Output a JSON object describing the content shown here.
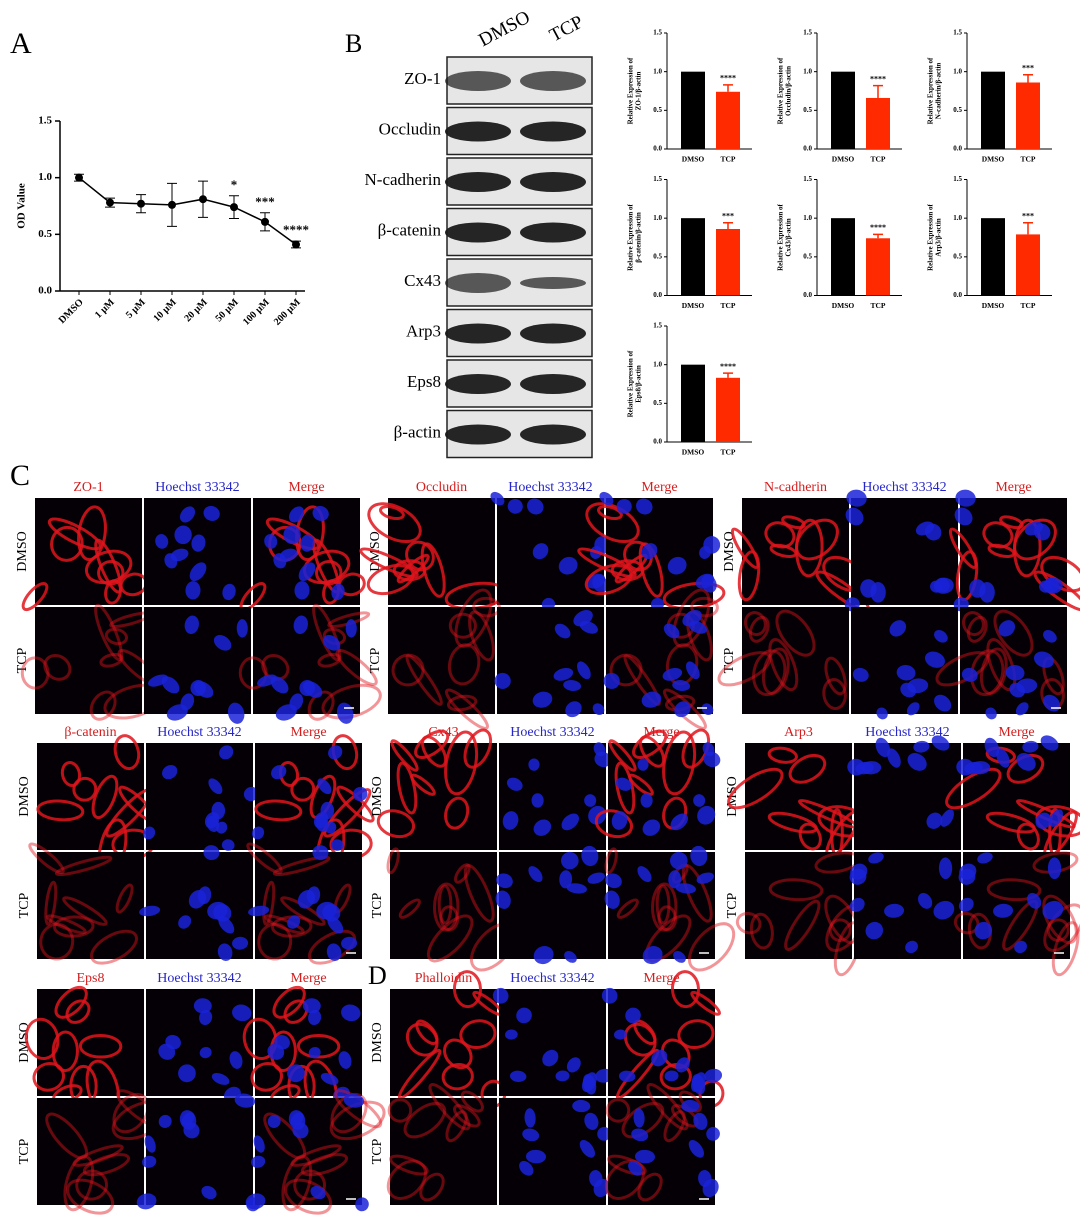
{
  "panels": [
    "A",
    "B",
    "C",
    "D"
  ],
  "chart_data": [
    {
      "type": "line",
      "ylabel": "OD Value",
      "categories": [
        "DMSO",
        "1 μM",
        "5 μM",
        "10 μM",
        "20 μM",
        "50 μM",
        "100 μM",
        "200 μM"
      ],
      "values": [
        1.0,
        0.78,
        0.77,
        0.76,
        0.81,
        0.74,
        0.61,
        0.41
      ],
      "errors": [
        0.03,
        0.04,
        0.08,
        0.19,
        0.16,
        0.1,
        0.08,
        0.03
      ],
      "annotations": [
        null,
        null,
        null,
        null,
        null,
        "*",
        "***",
        "****"
      ],
      "color": "#000000",
      "ylim": [
        0,
        1.5
      ],
      "yticks": [
        {
          "value": 0,
          "label": "0.0"
        },
        {
          "value": 0.5,
          "label": "0.5"
        },
        {
          "value": 1,
          "label": "1.0"
        },
        {
          "value": 1.5,
          "label": "1.5"
        }
      ]
    },
    {
      "type": "bar",
      "ylabel": [
        "Relative Expression of",
        "ZO-1/β-actin"
      ],
      "categories": [
        "DMSO",
        "TCP"
      ],
      "values": [
        1.0,
        0.74
      ],
      "errors": [
        null,
        0.09
      ],
      "annotations": [
        null,
        "****"
      ],
      "colors": [
        "#000000",
        "#ff2a00"
      ],
      "ylim": [
        0,
        1.5
      ],
      "yticks": [
        {
          "value": 0,
          "label": "0.0"
        },
        {
          "value": 0.5,
          "label": "0.5"
        },
        {
          "value": 1,
          "label": "1.0"
        },
        {
          "value": 1.5,
          "label": "1.5"
        }
      ]
    },
    {
      "type": "bar",
      "ylabel": [
        "Relative Expression of",
        "Occludin/β-actin"
      ],
      "categories": [
        "DMSO",
        "TCP"
      ],
      "values": [
        1.0,
        0.66
      ],
      "errors": [
        null,
        0.16
      ],
      "annotations": [
        null,
        "****"
      ],
      "colors": [
        "#000000",
        "#ff2a00"
      ],
      "ylim": [
        0,
        1.5
      ],
      "yticks": [
        {
          "value": 0,
          "label": "0.0"
        },
        {
          "value": 0.5,
          "label": "0.5"
        },
        {
          "value": 1,
          "label": "1.0"
        },
        {
          "value": 1.5,
          "label": "1.5"
        }
      ]
    },
    {
      "type": "bar",
      "ylabel": [
        "Relative Expression of",
        "N-cadherin/β-actin"
      ],
      "categories": [
        "DMSO",
        "TCP"
      ],
      "values": [
        1.0,
        0.86
      ],
      "errors": [
        null,
        0.1
      ],
      "annotations": [
        null,
        "***"
      ],
      "colors": [
        "#000000",
        "#ff2a00"
      ],
      "ylim": [
        0,
        1.5
      ],
      "yticks": [
        {
          "value": 0,
          "label": "0.0"
        },
        {
          "value": 0.5,
          "label": "0.5"
        },
        {
          "value": 1,
          "label": "1.0"
        },
        {
          "value": 1.5,
          "label": "1.5"
        }
      ]
    },
    {
      "type": "bar",
      "ylabel": [
        "Relative Expression of",
        "β-catenin/β-actin"
      ],
      "categories": [
        "DMSO",
        "TCP"
      ],
      "values": [
        1.0,
        0.86
      ],
      "errors": [
        null,
        0.08
      ],
      "annotations": [
        null,
        "***"
      ],
      "colors": [
        "#000000",
        "#ff2a00"
      ],
      "ylim": [
        0,
        1.5
      ],
      "yticks": [
        {
          "value": 0,
          "label": "0.0"
        },
        {
          "value": 0.5,
          "label": "0.5"
        },
        {
          "value": 1,
          "label": "1.0"
        },
        {
          "value": 1.5,
          "label": "1.5"
        }
      ]
    },
    {
      "type": "bar",
      "ylabel": [
        "Relative Expression of",
        "Cx43/β-actin"
      ],
      "categories": [
        "DMSO",
        "TCP"
      ],
      "values": [
        1.0,
        0.74
      ],
      "errors": [
        null,
        0.05
      ],
      "annotations": [
        null,
        "****"
      ],
      "colors": [
        "#000000",
        "#ff2a00"
      ],
      "ylim": [
        0,
        1.5
      ],
      "yticks": [
        {
          "value": 0,
          "label": "0.0"
        },
        {
          "value": 0.5,
          "label": "0.5"
        },
        {
          "value": 1,
          "label": "1.0"
        },
        {
          "value": 1.5,
          "label": "1.5"
        }
      ]
    },
    {
      "type": "bar",
      "ylabel": [
        "Relative Expression of",
        "Arp3/β-actin"
      ],
      "categories": [
        "DMSO",
        "TCP"
      ],
      "values": [
        1.0,
        0.79
      ],
      "errors": [
        null,
        0.15
      ],
      "annotations": [
        null,
        "***"
      ],
      "colors": [
        "#000000",
        "#ff2a00"
      ],
      "ylim": [
        0,
        1.5
      ],
      "yticks": [
        {
          "value": 0,
          "label": "0.0"
        },
        {
          "value": 0.5,
          "label": "0.5"
        },
        {
          "value": 1,
          "label": "1.0"
        },
        {
          "value": 1.5,
          "label": "1.5"
        }
      ]
    },
    {
      "type": "bar",
      "ylabel": [
        "Relative Expression of",
        "Eps8/β-actin"
      ],
      "categories": [
        "DMSO",
        "TCP"
      ],
      "values": [
        1.0,
        0.83
      ],
      "errors": [
        null,
        0.06
      ],
      "annotations": [
        null,
        "****"
      ],
      "colors": [
        "#000000",
        "#ff2a00"
      ],
      "ylim": [
        0,
        1.5
      ],
      "yticks": [
        {
          "value": 0,
          "label": "0.0"
        },
        {
          "value": 0.5,
          "label": "0.5"
        },
        {
          "value": 1,
          "label": "1.0"
        },
        {
          "value": 1.5,
          "label": "1.5"
        }
      ]
    }
  ],
  "blot": {
    "columns": [
      "DMSO",
      "TCP"
    ],
    "rows": [
      "ZO-1",
      "Occludin",
      "N-cadherin",
      "β-catenin",
      "Cx43",
      "Arp3",
      "Eps8",
      "β-actin"
    ]
  },
  "microscopy": {
    "groups": [
      {
        "labels": [
          "ZO-1",
          "Hoechst 33342",
          "Merge"
        ],
        "rows": [
          "DMSO",
          "TCP"
        ]
      },
      {
        "labels": [
          "Occludin",
          "Hoechst 33342",
          "Merge"
        ],
        "rows": [
          "DMSO",
          "TCP"
        ]
      },
      {
        "labels": [
          "N-cadherin",
          "Hoechst 33342",
          "Merge"
        ],
        "rows": [
          "DMSO",
          "TCP"
        ]
      },
      {
        "labels": [
          "β-catenin",
          "Hoechst 33342",
          "Merge"
        ],
        "rows": [
          "DMSO",
          "TCP"
        ]
      },
      {
        "labels": [
          "Cx43",
          "Hoechst 33342",
          "Merge"
        ],
        "rows": [
          "DMSO",
          "TCP"
        ]
      },
      {
        "labels": [
          "Arp3",
          "Hoechst 33342",
          "Merge"
        ],
        "rows": [
          "DMSO",
          "TCP"
        ]
      },
      {
        "labels": [
          "Eps8",
          "Hoechst 33342",
          "Merge"
        ],
        "rows": [
          "DMSO",
          "TCP"
        ]
      },
      {
        "labels": [
          "Phalloidin",
          "Hoechst 33342",
          "Merge"
        ],
        "rows": [
          "DMSO",
          "TCP"
        ]
      }
    ]
  }
}
